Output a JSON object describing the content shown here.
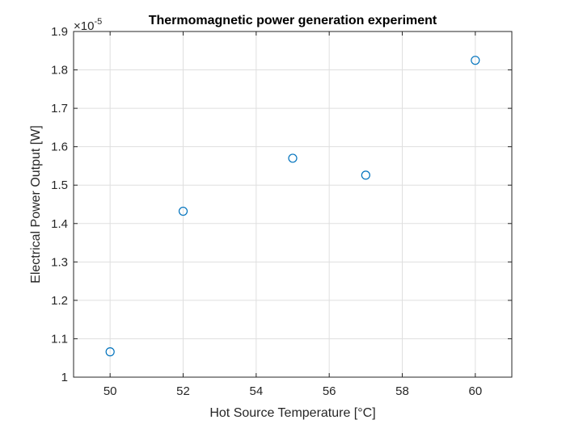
{
  "chart_data": {
    "type": "scatter",
    "title": "Thermomagnetic power generation experiment",
    "xlabel": "Hot Source Temperature [°C]",
    "ylabel": "Electrical Power Output [W]",
    "y_exponent_label": "×10",
    "y_exponent_power": "-5",
    "xlim": [
      49,
      61
    ],
    "ylim": [
      1.0,
      1.9
    ],
    "y_scale_factor": 1e-05,
    "x_ticks": [
      50,
      52,
      54,
      56,
      58,
      60
    ],
    "y_ticks": [
      1.0,
      1.1,
      1.2,
      1.3,
      1.4,
      1.5,
      1.6,
      1.7,
      1.8,
      1.9
    ],
    "x_tick_labels": [
      "50",
      "52",
      "54",
      "56",
      "58",
      "60"
    ],
    "y_tick_labels": [
      "1",
      "1.1",
      "1.2",
      "1.3",
      "1.4",
      "1.5",
      "1.6",
      "1.7",
      "1.8",
      "1.9"
    ],
    "grid": true,
    "marker": "circle-open",
    "marker_color": "#0072BD",
    "axis_color": "#262626",
    "grid_color": "#dfdfdf",
    "x": [
      50,
      52,
      55,
      57,
      60
    ],
    "y": [
      1.066,
      1.432,
      1.57,
      1.526,
      1.825
    ]
  }
}
